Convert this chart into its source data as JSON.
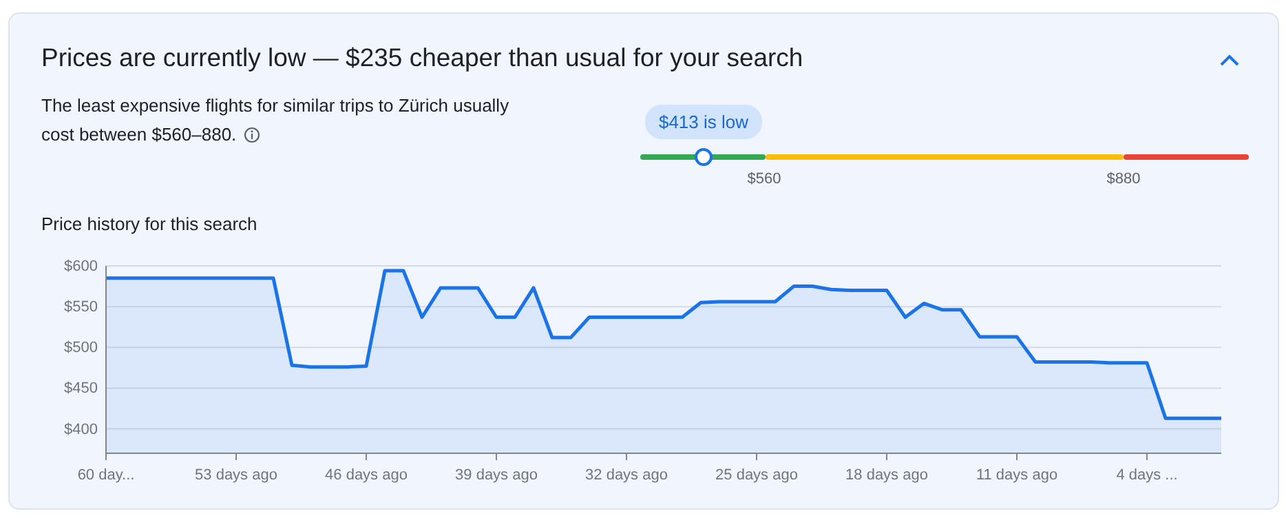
{
  "chart_data": [
    {
      "type": "other",
      "title": "Prices are currently low — $235 cheaper than usual for your search",
      "annotations": [
        "The least expensive flights for similar trips to Zürich usually cost between $560–880.",
        "$413 is low",
        "$560",
        "$880"
      ]
    },
    {
      "type": "area",
      "title": "Price history for this search",
      "x": [
        -60,
        -59,
        -58,
        -57,
        -56,
        -55,
        -54,
        -53,
        -52,
        -51,
        -50,
        -49,
        -48,
        -47,
        -46,
        -45,
        -44,
        -43,
        -42,
        -41,
        -40,
        -39,
        -38,
        -37,
        -36,
        -35,
        -34,
        -33,
        -32,
        -31,
        -30,
        -29,
        -28,
        -27,
        -26,
        -25,
        -24,
        -23,
        -22,
        -21,
        -20,
        -19,
        -18,
        -17,
        -16,
        -15,
        -14,
        -13,
        -12,
        -11,
        -10,
        -9,
        -8,
        -7,
        -6,
        -5,
        -4,
        -3,
        -2,
        -1,
        0
      ],
      "series": [
        {
          "color": "#1a73e8",
          "values": [
            585,
            585,
            585,
            585,
            585,
            585,
            585,
            585,
            585,
            585,
            478,
            476,
            476,
            476,
            477,
            594,
            594,
            537,
            573,
            573,
            573,
            537,
            537,
            573,
            512,
            512,
            537,
            537,
            537,
            537,
            537,
            537,
            555,
            556,
            556,
            556,
            556,
            575,
            575,
            571,
            570,
            570,
            570,
            537,
            554,
            546,
            546,
            513,
            513,
            513,
            482,
            482,
            482,
            482,
            481,
            481,
            481,
            413,
            413,
            413,
            413
          ]
        }
      ],
      "xlim": [
        -60,
        0
      ],
      "xticks": [
        {
          "value": -60,
          "label": "60 day..."
        },
        {
          "value": -53,
          "label": "53 days ago"
        },
        {
          "value": -46,
          "label": "46 days ago"
        },
        {
          "value": -39,
          "label": "39 days ago"
        },
        {
          "value": -32,
          "label": "32 days ago"
        },
        {
          "value": -25,
          "label": "25 days ago"
        },
        {
          "value": -18,
          "label": "18 days ago"
        },
        {
          "value": -11,
          "label": "11 days ago"
        },
        {
          "value": -4,
          "label": "4 days ..."
        }
      ],
      "ylim": [
        370,
        600
      ],
      "yticks": [
        {
          "value": 400,
          "label": "$400"
        },
        {
          "value": 450,
          "label": "$450"
        },
        {
          "value": 500,
          "label": "$500"
        },
        {
          "value": 550,
          "label": "$550"
        },
        {
          "value": 600,
          "label": "$600"
        }
      ],
      "grid": "y"
    }
  ]
}
